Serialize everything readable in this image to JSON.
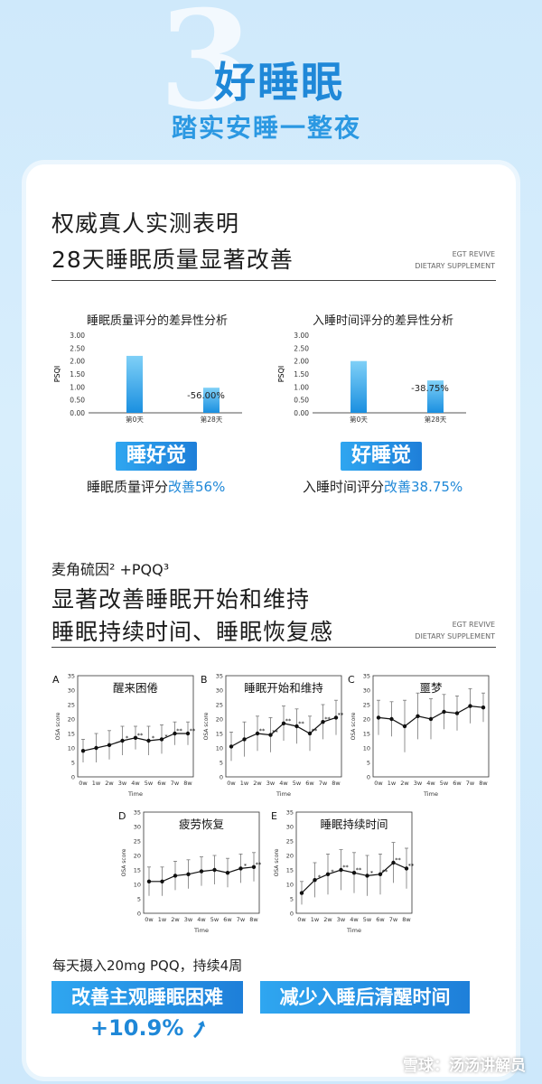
{
  "header": {
    "number": "3",
    "title": "好睡眠",
    "subtitle": "踏实安睡一整夜"
  },
  "section1": {
    "line1": "权威真人实测表明",
    "line2": "28天睡眠质量显著改善",
    "brand_line1": "EGT REVIVE",
    "brand_line2": "DIETARY SUPPLEMENT"
  },
  "bar_charts": [
    {
      "title": "睡眠质量评分的差异性分析",
      "pill": "睡好觉",
      "desc_prefix": "睡眠质量评分",
      "desc_blue": "改善56%"
    },
    {
      "title": "入睡时间评分的差异性分析",
      "pill": "好睡觉",
      "desc_prefix": "入睡时间评分",
      "desc_blue": "改善38.75%"
    }
  ],
  "section2": {
    "line0": "麦角硫因² +PQQ³",
    "line1": "显著改善睡眠开始和维持",
    "line2": "睡眠持续时间、睡眠恢复感",
    "brand_line1": "EGT REVIVE",
    "brand_line2": "DIETARY SUPPLEMENT"
  },
  "footer": {
    "intake": "每天摄入20mg PQQ，持续4周",
    "pill_left": "改善主观睡眠困难",
    "pill_right": "减少入睡后清醒时间",
    "improve": "+10.9%",
    "improve_color": "#1f88d8",
    "watermark": "雪球：汤汤讲解员"
  },
  "colors": {
    "accent": "#1f88d8",
    "bar_top": "#7fd0f7",
    "bar_bottom": "#1a8fe0"
  },
  "chart_data": [
    {
      "type": "bar",
      "title": "睡眠质量评分的差异性分析",
      "ylabel": "PSQI",
      "categories": [
        "第0天",
        "第28天"
      ],
      "values": [
        2.2,
        0.97
      ],
      "annotation": "-56.00%",
      "ylim": [
        0,
        3
      ],
      "yticks": [
        "0.00",
        "0.50",
        "1.00",
        "1.50",
        "2.00",
        "2.50",
        "3.00"
      ]
    },
    {
      "type": "bar",
      "title": "入睡时间评分的差异性分析",
      "ylabel": "PSQI",
      "categories": [
        "第0天",
        "第28天"
      ],
      "values": [
        2.0,
        1.25
      ],
      "annotation": "-38.75%",
      "ylim": [
        0,
        3
      ],
      "yticks": [
        "0.00",
        "0.50",
        "1.00",
        "1.50",
        "2.00",
        "2.50",
        "3.00"
      ]
    },
    {
      "type": "line",
      "panel": "A",
      "title": "醒来困倦",
      "xlabel": "Time",
      "ylabel": "OSA score",
      "categories": [
        "0w",
        "1w",
        "2w",
        "3w",
        "4w",
        "5w",
        "6w",
        "7w",
        "8w"
      ],
      "values": [
        9,
        10,
        11,
        12.5,
        13.5,
        12.5,
        13,
        15,
        15
      ],
      "err": [
        4,
        5,
        5,
        5,
        4,
        5,
        5,
        4,
        4
      ],
      "marks": [
        "",
        "",
        "",
        "*",
        "**",
        "*",
        "*",
        "**",
        "**"
      ],
      "ylim": [
        0,
        35
      ]
    },
    {
      "type": "line",
      "panel": "B",
      "title": "睡眠开始和维持",
      "xlabel": "Time",
      "ylabel": "OSA score",
      "categories": [
        "0w",
        "1w",
        "2w",
        "3w",
        "4w",
        "5w",
        "6w",
        "7w",
        "8w"
      ],
      "values": [
        10.5,
        13,
        15,
        14.5,
        18.5,
        17.5,
        15,
        19,
        20.5
      ],
      "err": [
        5,
        6,
        6,
        6,
        6,
        6,
        6,
        6,
        6
      ],
      "marks": [
        "",
        "",
        "**",
        "**",
        "**",
        "**",
        "**",
        "**",
        "**"
      ],
      "ylim": [
        0,
        35
      ]
    },
    {
      "type": "line",
      "panel": "C",
      "title": "噩梦",
      "xlabel": "Time",
      "ylabel": "OSA score",
      "categories": [
        "0w",
        "1w",
        "2w",
        "3w",
        "4w",
        "5w",
        "6w",
        "7w",
        "8w"
      ],
      "values": [
        20.5,
        20,
        17.5,
        21,
        20,
        22.5,
        22,
        24.5,
        24
      ],
      "err": [
        6,
        6,
        9,
        8,
        7,
        6,
        6,
        6,
        5
      ],
      "marks": [
        "",
        "",
        "",
        "",
        "",
        "",
        "",
        "",
        ""
      ],
      "ylim": [
        0,
        35
      ]
    },
    {
      "type": "line",
      "panel": "D",
      "title": "疲劳恢复",
      "xlabel": "Time",
      "ylabel": "OSA score",
      "categories": [
        "0w",
        "1w",
        "2w",
        "3w",
        "4w",
        "5w",
        "6w",
        "7w",
        "8w"
      ],
      "values": [
        11,
        11,
        13,
        13.5,
        14.5,
        15,
        14,
        15.5,
        16
      ],
      "err": [
        5,
        5,
        5,
        5,
        5,
        5,
        5,
        5,
        5
      ],
      "marks": [
        "",
        "",
        "",
        "",
        "",
        "",
        "",
        "*",
        "**"
      ],
      "ylim": [
        0,
        35
      ]
    },
    {
      "type": "line",
      "panel": "E",
      "title": "睡眠持续时间",
      "xlabel": "Time",
      "ylabel": "OSA score",
      "categories": [
        "0w",
        "1w",
        "2w",
        "3w",
        "4w",
        "5w",
        "6w",
        "7w",
        "8w"
      ],
      "values": [
        7,
        11.5,
        13.5,
        15,
        14,
        13,
        13.5,
        17.5,
        15.5
      ],
      "err": [
        4,
        6,
        7,
        7,
        7,
        7,
        7,
        7,
        7
      ],
      "marks": [
        "",
        "*",
        "*",
        "**",
        "**",
        "*",
        "**",
        "**",
        "**"
      ],
      "ylim": [
        0,
        35
      ]
    }
  ]
}
